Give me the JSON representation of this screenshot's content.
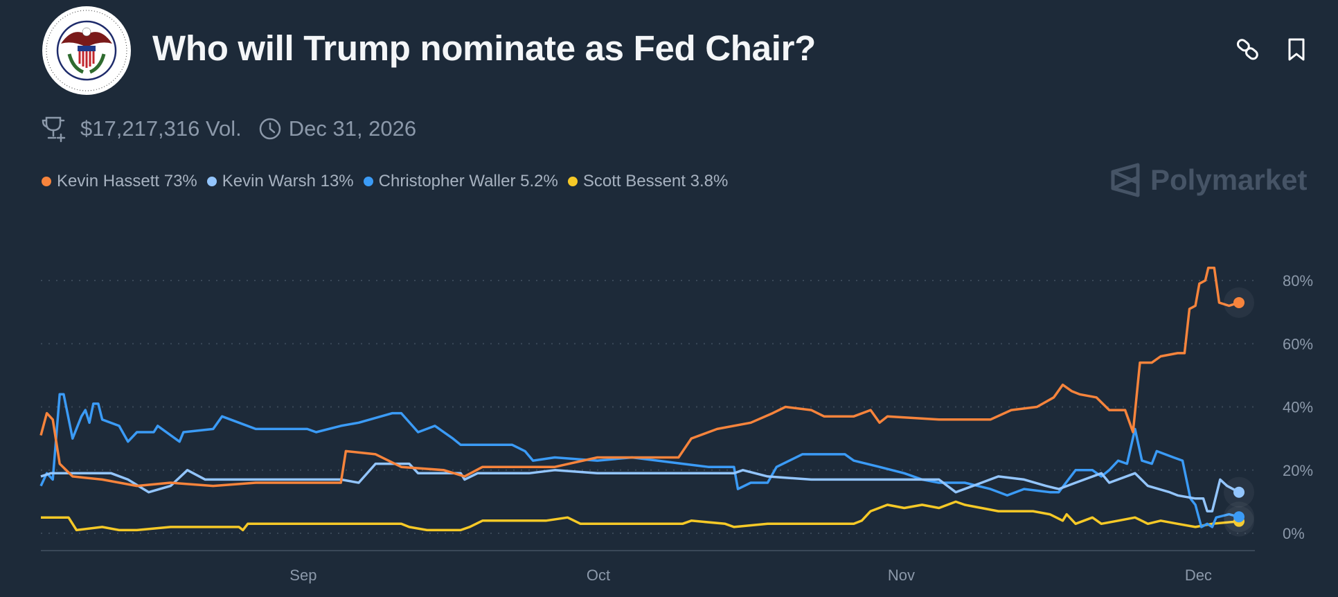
{
  "header": {
    "title": "Who will Trump nominate as Fed Chair?",
    "logo_text": "BOARD OF GOVERNORS OF THE FEDERAL RESERVE SYSTEM",
    "link_icon": "link-icon",
    "bookmark_icon": "bookmark-icon"
  },
  "meta": {
    "volume": "$17,217,316 Vol.",
    "end_date": "Dec 31, 2026"
  },
  "watermark": "Polymarket",
  "legend": [
    {
      "label": "Kevin Hassett 73%",
      "color": "#f7843c"
    },
    {
      "label": "Kevin Warsh 13%",
      "color": "#93c5fd"
    },
    {
      "label": "Christopher Waller 5.2%",
      "color": "#3b9bf6"
    },
    {
      "label": "Scott Bessent 3.8%",
      "color": "#f6c927"
    }
  ],
  "chart_data": {
    "type": "line",
    "title": "Who will Trump nominate as Fed Chair?",
    "xlabel": "",
    "ylabel": "",
    "x_units": "days since start of chart",
    "xlim": [
      0,
      121
    ],
    "ylim": [
      0,
      88
    ],
    "yticks": [
      {
        "value": 0,
        "label": "0%"
      },
      {
        "value": 20,
        "label": "20%"
      },
      {
        "value": 40,
        "label": "40%"
      },
      {
        "value": 60,
        "label": "60%"
      },
      {
        "value": 80,
        "label": "80%"
      }
    ],
    "xticks": [
      {
        "value": 26.5,
        "label": "Sep"
      },
      {
        "value": 56.3,
        "label": "Oct"
      },
      {
        "value": 86.9,
        "label": "Nov"
      },
      {
        "value": 116.9,
        "label": "Dec"
      }
    ],
    "grid": "horizontal dotted",
    "series": [
      {
        "name": "Kevin Hassett",
        "color": "#f7843c",
        "last": 73,
        "points": [
          [
            0,
            31
          ],
          [
            0.6,
            38
          ],
          [
            1.2,
            36
          ],
          [
            1.9,
            22
          ],
          [
            3.2,
            18
          ],
          [
            6.2,
            17
          ],
          [
            9.7,
            15
          ],
          [
            13.1,
            16
          ],
          [
            17.4,
            15
          ],
          [
            21.7,
            16
          ],
          [
            26.9,
            16
          ],
          [
            30.3,
            16
          ],
          [
            30.8,
            26
          ],
          [
            33.8,
            25
          ],
          [
            36.4,
            21
          ],
          [
            40.7,
            20
          ],
          [
            42.8,
            18
          ],
          [
            44.6,
            21
          ],
          [
            51.9,
            21
          ],
          [
            56.2,
            24
          ],
          [
            64.4,
            24
          ],
          [
            65.7,
            30
          ],
          [
            68.3,
            33
          ],
          [
            71.7,
            35
          ],
          [
            73.9,
            38
          ],
          [
            75.2,
            40
          ],
          [
            77.8,
            39
          ],
          [
            79.1,
            37
          ],
          [
            82.1,
            37
          ],
          [
            83.8,
            39
          ],
          [
            84.7,
            35
          ],
          [
            85.5,
            37
          ],
          [
            90.7,
            36
          ],
          [
            95.9,
            36
          ],
          [
            98,
            39
          ],
          [
            100.6,
            40
          ],
          [
            102.3,
            43
          ],
          [
            103.2,
            47
          ],
          [
            104.1,
            45
          ],
          [
            104.9,
            44
          ],
          [
            106.6,
            43
          ],
          [
            107.9,
            39
          ],
          [
            109.5,
            39
          ],
          [
            110.3,
            32
          ],
          [
            111,
            54
          ],
          [
            112.2,
            54
          ],
          [
            113.1,
            56
          ],
          [
            114.8,
            57
          ],
          [
            115.5,
            57
          ],
          [
            116,
            71
          ],
          [
            116.6,
            72
          ],
          [
            117,
            79
          ],
          [
            117.6,
            80
          ],
          [
            117.9,
            84
          ],
          [
            118.5,
            84
          ],
          [
            119,
            73
          ],
          [
            120,
            72
          ],
          [
            121,
            73
          ]
        ]
      },
      {
        "name": "Kevin Warsh",
        "color": "#93c5fd",
        "last": 13,
        "points": [
          [
            0,
            18
          ],
          [
            1,
            19
          ],
          [
            7.1,
            19
          ],
          [
            8.8,
            17
          ],
          [
            10.9,
            13
          ],
          [
            13.1,
            15
          ],
          [
            14.8,
            20
          ],
          [
            16.6,
            17
          ],
          [
            30.3,
            17
          ],
          [
            32.1,
            16
          ],
          [
            33.8,
            22
          ],
          [
            37.2,
            22
          ],
          [
            38.1,
            19
          ],
          [
            42.4,
            19
          ],
          [
            42.8,
            17
          ],
          [
            44.1,
            19
          ],
          [
            49.3,
            19
          ],
          [
            51.9,
            20
          ],
          [
            56.2,
            19
          ],
          [
            70,
            19
          ],
          [
            70.9,
            20
          ],
          [
            73.4,
            18
          ],
          [
            77.8,
            17
          ],
          [
            90.7,
            17
          ],
          [
            92.4,
            13
          ],
          [
            95,
            16
          ],
          [
            96.7,
            18
          ],
          [
            99.3,
            17
          ],
          [
            101.5,
            15
          ],
          [
            102.8,
            14
          ],
          [
            104.5,
            16
          ],
          [
            107.1,
            19
          ],
          [
            107.9,
            16
          ],
          [
            110.5,
            19
          ],
          [
            111.8,
            15
          ],
          [
            114,
            13
          ],
          [
            114.8,
            12
          ],
          [
            116.6,
            11
          ],
          [
            117.4,
            11
          ],
          [
            117.8,
            7
          ],
          [
            118.3,
            7
          ],
          [
            119.1,
            17
          ],
          [
            119.8,
            15
          ],
          [
            121,
            13
          ]
        ]
      },
      {
        "name": "Christopher Waller",
        "color": "#3b9bf6",
        "last": 5.2,
        "points": [
          [
            0,
            15
          ],
          [
            0.6,
            19
          ],
          [
            1.2,
            17
          ],
          [
            1.9,
            44
          ],
          [
            2.3,
            44
          ],
          [
            3.2,
            30
          ],
          [
            4.1,
            37
          ],
          [
            4.5,
            39
          ],
          [
            4.9,
            35
          ],
          [
            5.3,
            41
          ],
          [
            5.8,
            41
          ],
          [
            6.2,
            36
          ],
          [
            7.9,
            34
          ],
          [
            8.8,
            29
          ],
          [
            9.7,
            32
          ],
          [
            11.4,
            32
          ],
          [
            11.8,
            34
          ],
          [
            14,
            29
          ],
          [
            14.4,
            32
          ],
          [
            17.4,
            33
          ],
          [
            18.3,
            37
          ],
          [
            20,
            35
          ],
          [
            21.7,
            33
          ],
          [
            26.9,
            33
          ],
          [
            27.8,
            32
          ],
          [
            30.3,
            34
          ],
          [
            32.1,
            35
          ],
          [
            35.5,
            38
          ],
          [
            36.4,
            38
          ],
          [
            38.1,
            32
          ],
          [
            39.8,
            34
          ],
          [
            41.6,
            30
          ],
          [
            42.4,
            28
          ],
          [
            47.6,
            28
          ],
          [
            48.9,
            26
          ],
          [
            49.7,
            23
          ],
          [
            51.9,
            24
          ],
          [
            56.2,
            23
          ],
          [
            59.7,
            24
          ],
          [
            64.8,
            22
          ],
          [
            67.4,
            21
          ],
          [
            70,
            21
          ],
          [
            70.4,
            14
          ],
          [
            71.7,
            16
          ],
          [
            73.4,
            16
          ],
          [
            74.3,
            21
          ],
          [
            76.9,
            25
          ],
          [
            81.2,
            25
          ],
          [
            82.1,
            23
          ],
          [
            84.7,
            21
          ],
          [
            87.2,
            19
          ],
          [
            89,
            17
          ],
          [
            90.7,
            16
          ],
          [
            93.3,
            16
          ],
          [
            95.9,
            14
          ],
          [
            97.6,
            12
          ],
          [
            99.3,
            14
          ],
          [
            101.9,
            13
          ],
          [
            102.8,
            13
          ],
          [
            104.5,
            20
          ],
          [
            106.2,
            20
          ],
          [
            107.1,
            18
          ],
          [
            107.9,
            20
          ],
          [
            108.8,
            23
          ],
          [
            109.7,
            22
          ],
          [
            110.5,
            33
          ],
          [
            111.2,
            23
          ],
          [
            112.2,
            22
          ],
          [
            112.7,
            26
          ],
          [
            114.4,
            24
          ],
          [
            115.3,
            23
          ],
          [
            116.1,
            11
          ],
          [
            116.6,
            9
          ],
          [
            117.2,
            2
          ],
          [
            117.8,
            3
          ],
          [
            118.3,
            2
          ],
          [
            118.7,
            5
          ],
          [
            120,
            6
          ],
          [
            121,
            5.2
          ]
        ]
      },
      {
        "name": "Scott Bessent",
        "color": "#f6c927",
        "last": 3.8,
        "points": [
          [
            0,
            5
          ],
          [
            2.8,
            5
          ],
          [
            3.6,
            1
          ],
          [
            6.2,
            2
          ],
          [
            7.9,
            1
          ],
          [
            9.7,
            1
          ],
          [
            13.1,
            2
          ],
          [
            20,
            2
          ],
          [
            20.4,
            1
          ],
          [
            20.9,
            3
          ],
          [
            36.4,
            3
          ],
          [
            37.2,
            2
          ],
          [
            39,
            1
          ],
          [
            42.4,
            1
          ],
          [
            43.3,
            2
          ],
          [
            44.6,
            4
          ],
          [
            51,
            4
          ],
          [
            53.2,
            5
          ],
          [
            54.5,
            3
          ],
          [
            64.8,
            3
          ],
          [
            65.7,
            4
          ],
          [
            69.1,
            3
          ],
          [
            70,
            2
          ],
          [
            73.4,
            3
          ],
          [
            82.1,
            3
          ],
          [
            82.9,
            4
          ],
          [
            83.8,
            7
          ],
          [
            85.5,
            9
          ],
          [
            87.2,
            8
          ],
          [
            89,
            9
          ],
          [
            90.7,
            8
          ],
          [
            92.4,
            10
          ],
          [
            93.3,
            9
          ],
          [
            95,
            8
          ],
          [
            96.7,
            7
          ],
          [
            100.2,
            7
          ],
          [
            101.9,
            6
          ],
          [
            103.2,
            4
          ],
          [
            103.6,
            6
          ],
          [
            104.5,
            3
          ],
          [
            106.2,
            5
          ],
          [
            107.1,
            3
          ],
          [
            108.8,
            4
          ],
          [
            110.5,
            5
          ],
          [
            111.8,
            3
          ],
          [
            113.1,
            4
          ],
          [
            114.8,
            3
          ],
          [
            116.6,
            2
          ],
          [
            118.3,
            3
          ],
          [
            121,
            3.8
          ]
        ]
      }
    ]
  }
}
